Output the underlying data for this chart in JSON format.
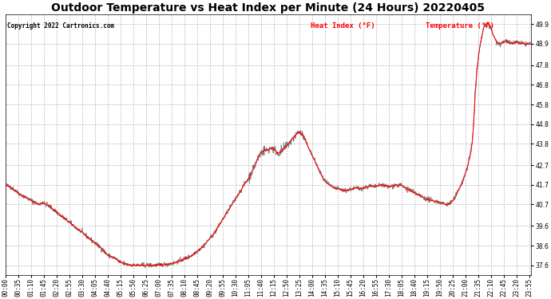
{
  "title": "Outdoor Temperature vs Heat Index per Minute (24 Hours) 20220405",
  "copyright": "Copyright 2022 Cartronics.com",
  "legend_heat": "Heat Index (°F)",
  "legend_temp": "Temperature (°F)",
  "heat_color": "red",
  "temp_color": "gray",
  "ylim": [
    37.1,
    50.4
  ],
  "yticks": [
    37.6,
    38.6,
    39.6,
    40.7,
    41.7,
    42.7,
    43.8,
    44.8,
    45.8,
    46.8,
    47.8,
    48.9,
    49.9
  ],
  "background_color": "#ffffff",
  "grid_color": "#aaaaaa",
  "title_fontsize": 10,
  "tick_fontsize": 5.5,
  "total_minutes": 1440,
  "tick_interval_min": 35,
  "control_points": [
    [
      0,
      41.7
    ],
    [
      20,
      41.5
    ],
    [
      40,
      41.2
    ],
    [
      60,
      41.0
    ],
    [
      80,
      40.8
    ],
    [
      90,
      40.7
    ],
    [
      100,
      40.8
    ],
    [
      110,
      40.7
    ],
    [
      120,
      40.6
    ],
    [
      140,
      40.3
    ],
    [
      160,
      40.0
    ],
    [
      180,
      39.7
    ],
    [
      200,
      39.4
    ],
    [
      220,
      39.1
    ],
    [
      240,
      38.8
    ],
    [
      260,
      38.5
    ],
    [
      270,
      38.3
    ],
    [
      280,
      38.1
    ],
    [
      300,
      37.95
    ],
    [
      310,
      37.8
    ],
    [
      320,
      37.7
    ],
    [
      330,
      37.65
    ],
    [
      340,
      37.62
    ],
    [
      360,
      37.6
    ],
    [
      380,
      37.6
    ],
    [
      400,
      37.6
    ],
    [
      410,
      37.6
    ],
    [
      420,
      37.61
    ],
    [
      430,
      37.63
    ],
    [
      440,
      37.65
    ],
    [
      460,
      37.7
    ],
    [
      480,
      37.85
    ],
    [
      500,
      38.0
    ],
    [
      510,
      38.1
    ],
    [
      520,
      38.25
    ],
    [
      530,
      38.4
    ],
    [
      540,
      38.55
    ],
    [
      550,
      38.75
    ],
    [
      560,
      39.0
    ],
    [
      570,
      39.2
    ],
    [
      580,
      39.5
    ],
    [
      590,
      39.8
    ],
    [
      600,
      40.1
    ],
    [
      610,
      40.4
    ],
    [
      620,
      40.7
    ],
    [
      630,
      41.0
    ],
    [
      640,
      41.3
    ],
    [
      650,
      41.6
    ],
    [
      660,
      41.9
    ],
    [
      665,
      42.0
    ],
    [
      670,
      42.2
    ],
    [
      675,
      42.4
    ],
    [
      680,
      42.6
    ],
    [
      685,
      42.8
    ],
    [
      690,
      43.0
    ],
    [
      695,
      43.2
    ],
    [
      700,
      43.35
    ],
    [
      705,
      43.4
    ],
    [
      710,
      43.5
    ],
    [
      715,
      43.45
    ],
    [
      720,
      43.5
    ],
    [
      725,
      43.55
    ],
    [
      730,
      43.6
    ],
    [
      735,
      43.5
    ],
    [
      740,
      43.45
    ],
    [
      745,
      43.3
    ],
    [
      750,
      43.35
    ],
    [
      755,
      43.4
    ],
    [
      760,
      43.5
    ],
    [
      765,
      43.6
    ],
    [
      770,
      43.7
    ],
    [
      775,
      43.8
    ],
    [
      780,
      43.9
    ],
    [
      785,
      44.0
    ],
    [
      790,
      44.15
    ],
    [
      795,
      44.25
    ],
    [
      800,
      44.35
    ],
    [
      805,
      44.4
    ],
    [
      810,
      44.3
    ],
    [
      815,
      44.2
    ],
    [
      820,
      44.0
    ],
    [
      825,
      43.8
    ],
    [
      830,
      43.6
    ],
    [
      835,
      43.4
    ],
    [
      840,
      43.2
    ],
    [
      845,
      43.0
    ],
    [
      850,
      42.8
    ],
    [
      855,
      42.6
    ],
    [
      860,
      42.4
    ],
    [
      865,
      42.2
    ],
    [
      870,
      42.0
    ],
    [
      875,
      41.9
    ],
    [
      880,
      41.8
    ],
    [
      890,
      41.65
    ],
    [
      900,
      41.55
    ],
    [
      910,
      41.5
    ],
    [
      920,
      41.45
    ],
    [
      930,
      41.4
    ],
    [
      940,
      41.45
    ],
    [
      950,
      41.5
    ],
    [
      960,
      41.55
    ],
    [
      970,
      41.5
    ],
    [
      980,
      41.55
    ],
    [
      990,
      41.6
    ],
    [
      1000,
      41.65
    ],
    [
      1010,
      41.6
    ],
    [
      1020,
      41.65
    ],
    [
      1030,
      41.7
    ],
    [
      1040,
      41.65
    ],
    [
      1050,
      41.6
    ],
    [
      1060,
      41.65
    ],
    [
      1070,
      41.7
    ],
    [
      1075,
      41.65
    ],
    [
      1080,
      41.7
    ],
    [
      1085,
      41.65
    ],
    [
      1090,
      41.6
    ],
    [
      1095,
      41.55
    ],
    [
      1100,
      41.5
    ],
    [
      1110,
      41.4
    ],
    [
      1115,
      41.35
    ],
    [
      1120,
      41.3
    ],
    [
      1130,
      41.2
    ],
    [
      1140,
      41.1
    ],
    [
      1150,
      41.0
    ],
    [
      1160,
      40.95
    ],
    [
      1170,
      40.9
    ],
    [
      1180,
      40.85
    ],
    [
      1190,
      40.8
    ],
    [
      1200,
      40.75
    ],
    [
      1205,
      40.72
    ],
    [
      1210,
      40.7
    ],
    [
      1215,
      40.72
    ],
    [
      1220,
      40.8
    ],
    [
      1225,
      40.9
    ],
    [
      1230,
      41.0
    ],
    [
      1235,
      41.2
    ],
    [
      1240,
      41.4
    ],
    [
      1245,
      41.6
    ],
    [
      1250,
      41.8
    ],
    [
      1255,
      42.0
    ],
    [
      1260,
      42.3
    ],
    [
      1265,
      42.6
    ],
    [
      1270,
      43.0
    ],
    [
      1275,
      43.4
    ],
    [
      1278,
      43.8
    ],
    [
      1280,
      44.2
    ],
    [
      1283,
      45.0
    ],
    [
      1285,
      45.8
    ],
    [
      1287,
      46.5
    ],
    [
      1290,
      47.2
    ],
    [
      1293,
      47.8
    ],
    [
      1296,
      48.3
    ],
    [
      1300,
      48.8
    ],
    [
      1305,
      49.3
    ],
    [
      1310,
      49.7
    ],
    [
      1315,
      49.9
    ],
    [
      1320,
      49.95
    ],
    [
      1325,
      49.9
    ],
    [
      1330,
      49.7
    ],
    [
      1335,
      49.4
    ],
    [
      1340,
      49.2
    ],
    [
      1345,
      49.0
    ],
    [
      1350,
      48.95
    ],
    [
      1355,
      48.9
    ],
    [
      1360,
      48.95
    ],
    [
      1365,
      49.0
    ],
    [
      1370,
      49.05
    ],
    [
      1375,
      49.0
    ],
    [
      1380,
      48.95
    ],
    [
      1385,
      48.9
    ],
    [
      1390,
      48.92
    ],
    [
      1395,
      48.95
    ],
    [
      1400,
      49.0
    ],
    [
      1405,
      48.95
    ],
    [
      1410,
      48.9
    ],
    [
      1415,
      48.92
    ],
    [
      1420,
      48.9
    ],
    [
      1425,
      48.88
    ],
    [
      1430,
      48.9
    ],
    [
      1435,
      48.9
    ],
    [
      1439,
      48.9
    ]
  ]
}
